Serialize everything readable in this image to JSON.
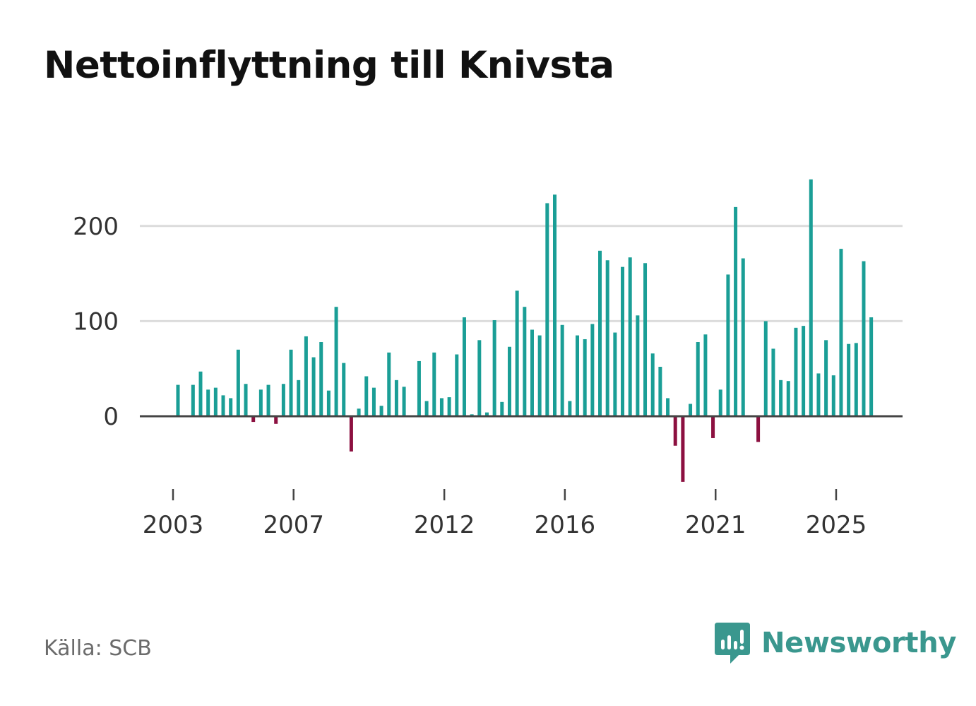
{
  "chart_data": {
    "type": "bar",
    "title": "Nettoinflyttning till Knivsta",
    "source": "Källa: SCB",
    "brand": "Newsworthy",
    "ylim": [
      -85,
      250
    ],
    "yticks": [
      0,
      100,
      200
    ],
    "ytick_labels": [
      "0",
      "100",
      "200"
    ],
    "xticks": [
      {
        "label": "2003",
        "index": 0
      },
      {
        "label": "2007",
        "index": 16
      },
      {
        "label": "2012",
        "index": 36
      },
      {
        "label": "2016",
        "index": 52
      },
      {
        "label": "2021",
        "index": 72
      },
      {
        "label": "2025",
        "index": 88
      }
    ],
    "grid": true,
    "colors": {
      "positive": "#1a9e96",
      "negative": "#8c1040",
      "grid": "#dcdcdc",
      "zero_line": "#444444"
    },
    "values": [
      33,
      0,
      33,
      47,
      28,
      30,
      22,
      19,
      70,
      34,
      -6,
      28,
      33,
      -8,
      34,
      70,
      38,
      84,
      62,
      78,
      27,
      115,
      56,
      -37,
      8,
      42,
      30,
      11,
      67,
      38,
      31,
      0,
      58,
      16,
      67,
      19,
      20,
      65,
      104,
      2,
      80,
      4,
      101,
      15,
      73,
      132,
      115,
      91,
      85,
      224,
      233,
      96,
      16,
      85,
      81,
      97,
      174,
      164,
      88,
      157,
      167,
      106,
      161,
      66,
      52,
      19,
      -31,
      -69,
      13,
      78,
      86,
      -23,
      28,
      149,
      220,
      166,
      0,
      -27,
      100,
      71,
      38,
      37,
      93,
      95,
      249,
      45,
      80,
      43,
      176,
      76,
      77,
      163,
      104
    ]
  }
}
